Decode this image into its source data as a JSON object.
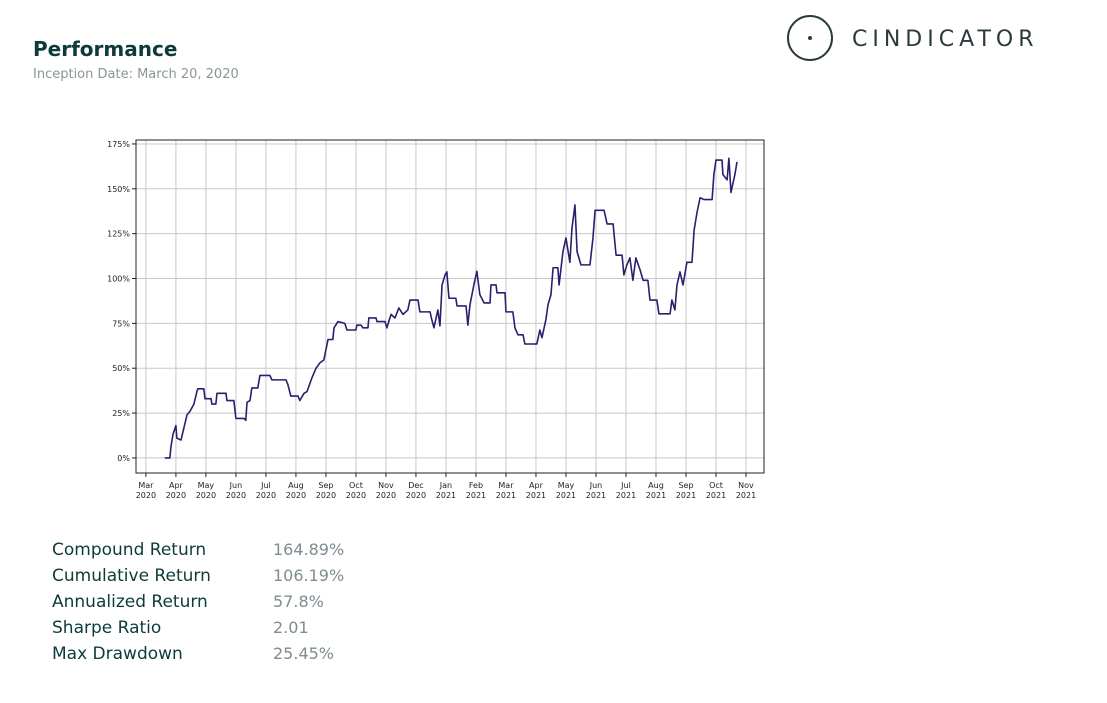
{
  "header": {
    "title": "Performance",
    "subtitle": "Inception Date: March 20, 2020",
    "logo": "CINDICATOR"
  },
  "chart_data": {
    "type": "line",
    "color": "#2a1f6e",
    "grid": true,
    "xlim": [
      -0.33,
      20.6
    ],
    "ylim": [
      -8.4,
      177.2
    ],
    "xticks": [
      {
        "value": 0,
        "label": "Mar 2020"
      },
      {
        "value": 1,
        "label": "Apr 2020"
      },
      {
        "value": 2,
        "label": "May 2020"
      },
      {
        "value": 3,
        "label": "Jun 2020"
      },
      {
        "value": 4,
        "label": "Jul 2020"
      },
      {
        "value": 5,
        "label": "Aug 2020"
      },
      {
        "value": 6,
        "label": "Sep 2020"
      },
      {
        "value": 7,
        "label": "Oct 2020"
      },
      {
        "value": 8,
        "label": "Nov 2020"
      },
      {
        "value": 9,
        "label": "Dec 2020"
      },
      {
        "value": 10,
        "label": "Jan 2021"
      },
      {
        "value": 11,
        "label": "Feb 2021"
      },
      {
        "value": 12,
        "label": "Mar 2021"
      },
      {
        "value": 13,
        "label": "Apr 2021"
      },
      {
        "value": 14,
        "label": "May 2021"
      },
      {
        "value": 15,
        "label": "Jun 2021"
      },
      {
        "value": 16,
        "label": "Jul 2021"
      },
      {
        "value": 17,
        "label": "Aug 2021"
      },
      {
        "value": 18,
        "label": "Sep 2021"
      },
      {
        "value": 19,
        "label": "Oct 2021"
      },
      {
        "value": 20,
        "label": "Nov 2021"
      }
    ],
    "yticks": [
      {
        "value": 0,
        "label": "0%"
      },
      {
        "value": 25,
        "label": "25%"
      },
      {
        "value": 50,
        "label": "50%"
      },
      {
        "value": 75,
        "label": "75%"
      },
      {
        "value": 100,
        "label": "100%"
      },
      {
        "value": 125,
        "label": "125%"
      },
      {
        "value": 150,
        "label": "150%"
      },
      {
        "value": 175,
        "label": "175%"
      }
    ],
    "x": [
      0.63,
      0.8,
      0.83,
      0.9,
      1.0,
      1.03,
      1.17,
      1.27,
      1.37,
      1.47,
      1.6,
      1.7,
      1.73,
      1.93,
      1.97,
      2.17,
      2.2,
      2.33,
      2.37,
      2.67,
      2.7,
      2.93,
      3.0,
      3.27,
      3.33,
      3.37,
      3.47,
      3.53,
      3.73,
      3.8,
      4.13,
      4.2,
      4.67,
      4.73,
      4.83,
      5.07,
      5.13,
      5.27,
      5.37,
      5.53,
      5.67,
      5.8,
      5.93,
      6.07,
      6.23,
      6.27,
      6.4,
      6.63,
      6.7,
      7.0,
      7.03,
      7.17,
      7.23,
      7.4,
      7.43,
      7.67,
      7.7,
      7.97,
      8.03,
      8.17,
      8.3,
      8.43,
      8.57,
      8.73,
      8.8,
      9.07,
      9.13,
      9.47,
      9.53,
      9.6,
      9.73,
      9.8,
      9.87,
      9.97,
      10.03,
      10.1,
      10.33,
      10.37,
      10.67,
      10.73,
      10.8,
      10.93,
      11.03,
      11.13,
      11.27,
      11.47,
      11.5,
      11.67,
      11.7,
      11.97,
      12.0,
      12.23,
      12.3,
      12.4,
      12.57,
      12.63,
      13.03,
      13.13,
      13.2,
      13.33,
      13.4,
      13.5,
      13.57,
      13.73,
      13.77,
      13.9,
      14.0,
      14.13,
      14.2,
      14.3,
      14.37,
      14.5,
      14.8,
      14.9,
      14.97,
      15.27,
      15.37,
      15.57,
      15.67,
      15.87,
      15.93,
      16.03,
      16.13,
      16.23,
      16.33,
      16.47,
      16.57,
      16.73,
      16.8,
      17.03,
      17.1,
      17.47,
      17.53,
      17.63,
      17.7,
      17.8,
      17.9,
      18.03,
      18.2,
      18.27,
      18.37,
      18.47,
      18.6,
      18.87,
      18.93,
      19.0,
      19.2,
      19.23,
      19.37,
      19.43,
      19.5,
      19.63,
      19.7
    ],
    "values": [
      0,
      0,
      5.6,
      13,
      18,
      11,
      10,
      17,
      24,
      26,
      30,
      37,
      38.5,
      38.5,
      33,
      33,
      30,
      30,
      36,
      36,
      32,
      32,
      22,
      22,
      21,
      31,
      32,
      39,
      39,
      46,
      46,
      43.5,
      43.5,
      41,
      34.5,
      34.5,
      32,
      36,
      37,
      44.5,
      50,
      53,
      54.6,
      66,
      66,
      72.5,
      76,
      75,
      71.3,
      71.3,
      74,
      74,
      72.5,
      72.5,
      78,
      78,
      76,
      76,
      72.5,
      80,
      78,
      83.6,
      80,
      82.5,
      88,
      88,
      81.4,
      81.4,
      77,
      72.5,
      82.5,
      73.6,
      96.4,
      102,
      103.7,
      89,
      89,
      84.7,
      84.7,
      74,
      85.3,
      96.4,
      104,
      91,
      86.4,
      86.4,
      96.4,
      96.4,
      92,
      92,
      81.4,
      81.4,
      72.5,
      68.6,
      68.6,
      63.5,
      63.5,
      71.3,
      67,
      77,
      85.3,
      91,
      106,
      106,
      96.4,
      115,
      122.6,
      109,
      128,
      141,
      115,
      107.6,
      107.6,
      122.6,
      138,
      138,
      130.4,
      130.4,
      113,
      113,
      102,
      107.6,
      111.5,
      99,
      111.5,
      104.8,
      99,
      99,
      88,
      88,
      80.3,
      80.3,
      88,
      82.5,
      96.4,
      103.7,
      96.4,
      109,
      109,
      127,
      137,
      145,
      144,
      144,
      158,
      166,
      166,
      158,
      155,
      167,
      148,
      158,
      165
    ]
  },
  "stats": {
    "rows": [
      [
        "Compound Return",
        "164.89%"
      ],
      [
        "Cumulative Return",
        "106.19%"
      ],
      [
        "Annualized Return",
        "57.8%"
      ],
      [
        "Sharpe Ratio",
        "2.01"
      ],
      [
        "Max Drawdown",
        "25.45%"
      ]
    ]
  }
}
